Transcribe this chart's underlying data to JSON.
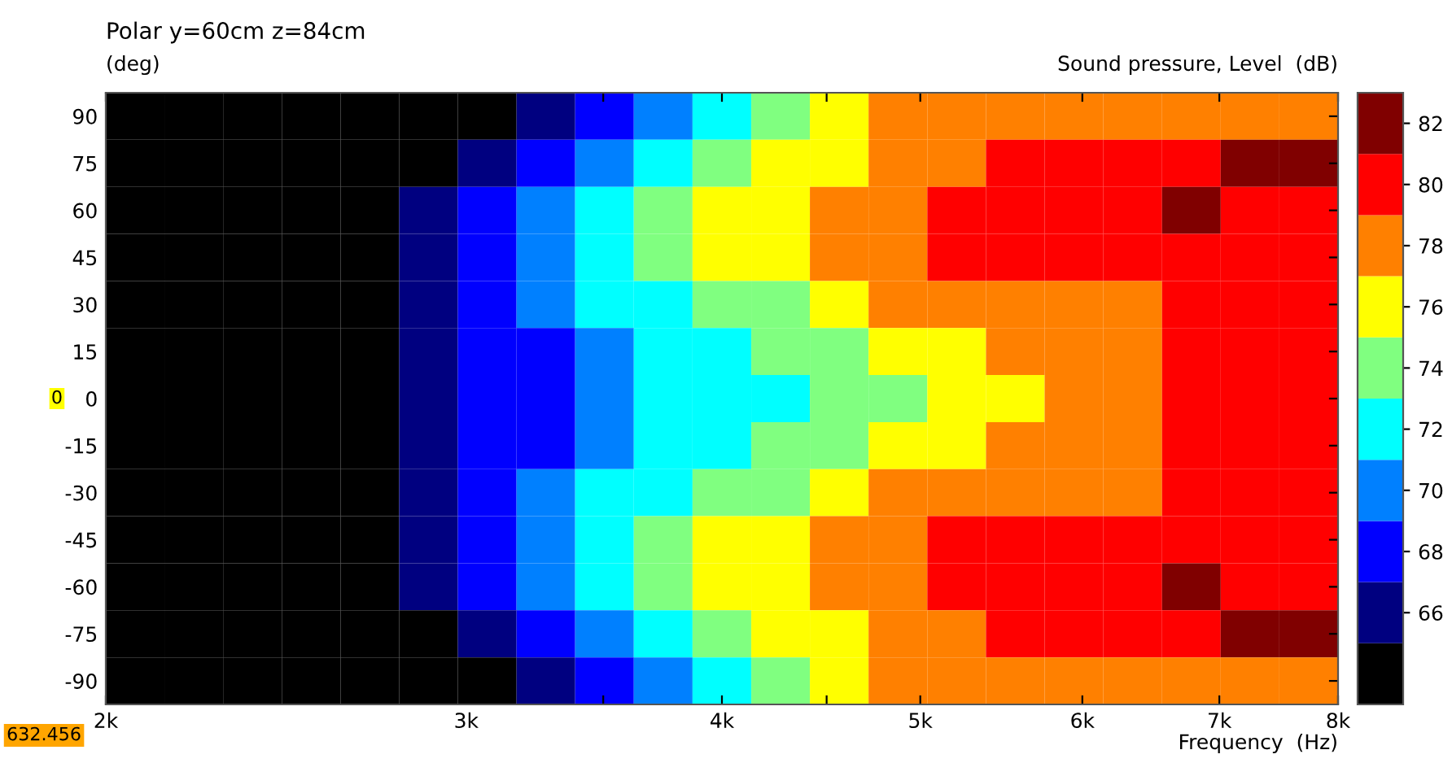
{
  "chart_data": {
    "type": "heatmap",
    "title": "Polar y=60cm z=84cm",
    "ylabel": "(deg)",
    "xlabel": "Frequency  (Hz)",
    "clabel": "Sound pressure, Level  (dB)",
    "log": "x",
    "x": [
      2067,
      2208,
      2359,
      2520,
      2692,
      2875,
      3072,
      3281,
      3505,
      3744,
      4000,
      4273,
      4564,
      4876,
      5209,
      5564,
      5944,
      6350,
      6783,
      7246,
      7740
    ],
    "y_categories": [
      "90",
      "75",
      "60",
      "45",
      "30",
      "15",
      "0",
      "-15",
      "-30",
      "-45",
      "-60",
      "-75",
      "-90"
    ],
    "cells": [
      [
        64,
        64,
        64,
        64,
        64,
        64,
        64,
        66,
        68,
        70,
        72,
        74,
        76,
        78,
        78,
        78,
        78,
        78,
        78,
        78,
        78
      ],
      [
        64,
        64,
        64,
        64,
        64,
        64,
        66,
        68,
        70,
        72,
        74,
        76,
        76,
        78,
        78,
        80,
        80,
        80,
        80,
        82,
        82
      ],
      [
        64,
        64,
        64,
        64,
        64,
        66,
        68,
        70,
        72,
        74,
        76,
        76,
        78,
        78,
        80,
        80,
        80,
        80,
        82,
        80,
        80
      ],
      [
        64,
        64,
        64,
        64,
        64,
        66,
        68,
        70,
        72,
        74,
        76,
        76,
        78,
        78,
        80,
        80,
        80,
        80,
        80,
        80,
        80
      ],
      [
        64,
        64,
        64,
        64,
        64,
        66,
        68,
        70,
        72,
        72,
        74,
        74,
        76,
        78,
        78,
        78,
        78,
        78,
        80,
        80,
        80
      ],
      [
        64,
        64,
        64,
        64,
        64,
        66,
        68,
        68,
        70,
        72,
        72,
        74,
        74,
        76,
        76,
        78,
        78,
        78,
        80,
        80,
        80
      ],
      [
        64,
        64,
        64,
        64,
        64,
        66,
        68,
        68,
        70,
        72,
        72,
        72,
        74,
        74,
        76,
        76,
        78,
        78,
        80,
        80,
        80
      ],
      [
        64,
        64,
        64,
        64,
        64,
        66,
        68,
        68,
        70,
        72,
        72,
        74,
        74,
        76,
        76,
        78,
        78,
        78,
        80,
        80,
        80
      ],
      [
        64,
        64,
        64,
        64,
        64,
        66,
        68,
        70,
        72,
        72,
        74,
        74,
        76,
        78,
        78,
        78,
        78,
        78,
        80,
        80,
        80
      ],
      [
        64,
        64,
        64,
        64,
        64,
        66,
        68,
        70,
        72,
        74,
        76,
        76,
        78,
        78,
        80,
        80,
        80,
        80,
        80,
        80,
        80
      ],
      [
        64,
        64,
        64,
        64,
        64,
        66,
        68,
        70,
        72,
        74,
        76,
        76,
        78,
        78,
        80,
        80,
        80,
        80,
        82,
        80,
        80
      ],
      [
        64,
        64,
        64,
        64,
        64,
        64,
        66,
        68,
        70,
        72,
        74,
        76,
        76,
        78,
        78,
        80,
        80,
        80,
        80,
        82,
        82
      ],
      [
        64,
        64,
        64,
        64,
        64,
        64,
        64,
        66,
        68,
        70,
        72,
        74,
        76,
        78,
        78,
        78,
        78,
        78,
        78,
        78,
        78
      ]
    ],
    "colors": [
      "#000000",
      "#000080",
      "#0000ff",
      "#0080ff",
      "#00ffff",
      "#80ff80",
      "#ffff00",
      "#ff8000",
      "#ff0000",
      "#800000"
    ],
    "clim": [
      63,
      83
    ],
    "cticks": [
      66,
      68,
      70,
      72,
      74,
      76,
      78,
      80,
      82
    ],
    "xlim": [
      2000,
      8000
    ],
    "xticks": [
      {
        "value": 2000,
        "label": "2k"
      },
      {
        "value": 2500,
        "label": null
      },
      {
        "value": 3000,
        "label": "3k"
      },
      {
        "value": 3500,
        "label": null
      },
      {
        "value": 4000,
        "label": "4k"
      },
      {
        "value": 4500,
        "label": null
      },
      {
        "value": 5000,
        "label": "5k"
      },
      {
        "value": 6000,
        "label": "6k"
      },
      {
        "value": 7000,
        "label": "7k"
      },
      {
        "value": 8000,
        "label": "8k"
      }
    ],
    "annotations": [
      "632.456",
      "0"
    ]
  }
}
